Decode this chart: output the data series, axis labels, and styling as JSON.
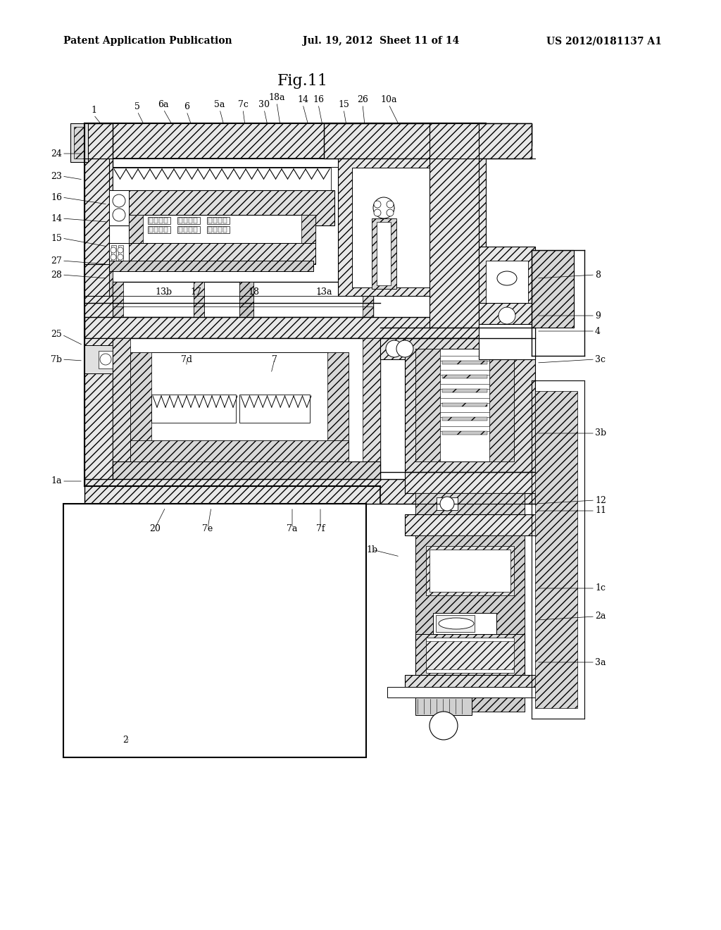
{
  "bg": "#ffffff",
  "header_left": "Patent Application Publication",
  "header_mid": "Jul. 19, 2012  Sheet 11 of 14",
  "header_right": "US 2012/0181137 A1",
  "fig_label": "Fig.11",
  "lfs": 9,
  "hfs": 10,
  "tfs": 16
}
